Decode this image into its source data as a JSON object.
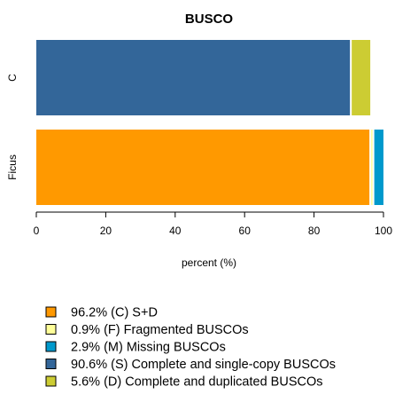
{
  "chart_data": {
    "type": "bar",
    "orientation": "horizontal",
    "stacked": true,
    "title": "BUSCO",
    "xlabel": "percent (%)",
    "ylabel": "",
    "xlim": [
      0,
      100
    ],
    "xticks": [
      0,
      20,
      40,
      60,
      80,
      100
    ],
    "categories": [
      "C",
      "Ficus"
    ],
    "rows": [
      {
        "label": "C",
        "segments": [
          {
            "key": "S",
            "value": 90.6,
            "color": "#336699"
          },
          {
            "key": "D",
            "value": 5.6,
            "color": "#cccc33"
          }
        ]
      },
      {
        "label": "Ficus",
        "segments": [
          {
            "key": "CSD",
            "value": 96.2,
            "color": "#ff9900"
          },
          {
            "key": "F",
            "value": 0.9,
            "color": "#ffff99"
          },
          {
            "key": "M",
            "value": 2.9,
            "color": "#0099cc"
          }
        ]
      }
    ],
    "legend": {
      "position": "bottom-left",
      "items": [
        {
          "label": "96.2% (C) S+D",
          "color": "#ff9900"
        },
        {
          "label": "0.9% (F) Fragmented BUSCOs",
          "color": "#ffff99"
        },
        {
          "label": "2.9% (M) Missing BUSCOs",
          "color": "#0099cc"
        },
        {
          "label": "90.6% (S) Complete and single-copy BUSCOs",
          "color": "#336699"
        },
        {
          "label": "5.6% (D) Complete and duplicated BUSCOs",
          "color": "#cccc33"
        }
      ]
    },
    "grid": false
  }
}
